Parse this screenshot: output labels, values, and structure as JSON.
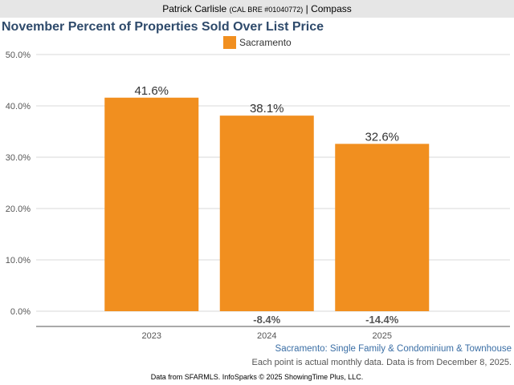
{
  "header": {
    "agent": "Patrick Carlisle",
    "license": "(CAL BRE #01040772)",
    "separator": " | ",
    "brokerage": "Compass"
  },
  "chart_data": {
    "type": "bar",
    "title": "November Percent of Properties Sold Over List Price",
    "categories": [
      "2023",
      "2024",
      "2025"
    ],
    "series": [
      {
        "name": "Sacramento",
        "values": [
          41.6,
          38.1,
          32.6
        ],
        "labels": [
          "41.6%",
          "38.1%",
          "32.6%"
        ],
        "color": "#f18f1f"
      }
    ],
    "changes": [
      "",
      "-8.4%",
      "-14.4%"
    ],
    "ylim": [
      0,
      50
    ],
    "yticks": [
      "0.0%",
      "10.0%",
      "20.0%",
      "30.0%",
      "40.0%",
      "50.0%"
    ],
    "ytick_values": [
      0,
      10,
      20,
      30,
      40,
      50
    ],
    "grid": true,
    "legend": "top-center",
    "xlabel": "",
    "ylabel": ""
  },
  "footnotes": {
    "line1": "Sacramento: Single Family & Condominium & Townhouse",
    "line2": "Each point is actual monthly data. Data is from December 8, 2025."
  },
  "credit": "Data from SFARMLS. InfoSparks © 2025 ShowingTime Plus, LLC."
}
